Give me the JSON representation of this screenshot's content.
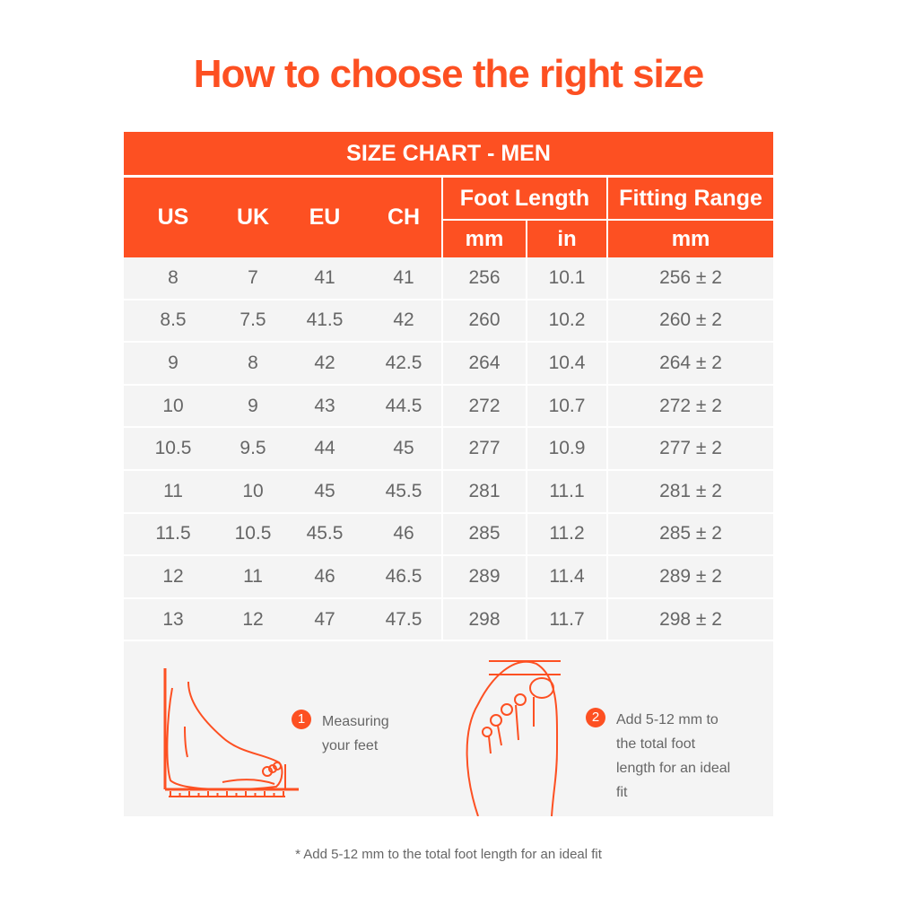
{
  "title": "How to choose the right size",
  "table": {
    "caption": "SIZE CHART - MEN",
    "headers": {
      "us": "US",
      "uk": "UK",
      "eu": "EU",
      "ch": "CH",
      "foot_length": "Foot Length",
      "fitting_range": "Fitting Range",
      "mm": "mm",
      "in": "in",
      "fit_mm": "mm"
    },
    "rows": [
      [
        "8",
        "7",
        "41",
        "41",
        "256",
        "10.1",
        "256 ± 2"
      ],
      [
        "8.5",
        "7.5",
        "41.5",
        "42",
        "260",
        "10.2",
        "260 ± 2"
      ],
      [
        "9",
        "8",
        "42",
        "42.5",
        "264",
        "10.4",
        "264 ± 2"
      ],
      [
        "10",
        "9",
        "43",
        "44.5",
        "272",
        "10.7",
        "272 ± 2"
      ],
      [
        "10.5",
        "9.5",
        "44",
        "45",
        "277",
        "10.9",
        "277 ± 2"
      ],
      [
        "11",
        "10",
        "45",
        "45.5",
        "281",
        "11.1",
        "281 ± 2"
      ],
      [
        "11.5",
        "10.5",
        "45.5",
        "46",
        "285",
        "11.2",
        "285 ± 2"
      ],
      [
        "12",
        "11",
        "46",
        "46.5",
        "289",
        "11.4",
        "289 ± 2"
      ],
      [
        "13",
        "12",
        "47",
        "47.5",
        "298",
        "11.7",
        "298 ± 2"
      ]
    ]
  },
  "steps": [
    {
      "num": "1",
      "text": "Measuring your feet"
    },
    {
      "num": "2",
      "text": "Add 5-12 mm to the total foot length for an ideal fit"
    }
  ],
  "footnote": "* Add 5-12 mm to the total foot length for an ideal fit",
  "colors": {
    "accent": "#fd5022",
    "row_bg": "#f4f4f4",
    "text": "#666666"
  }
}
